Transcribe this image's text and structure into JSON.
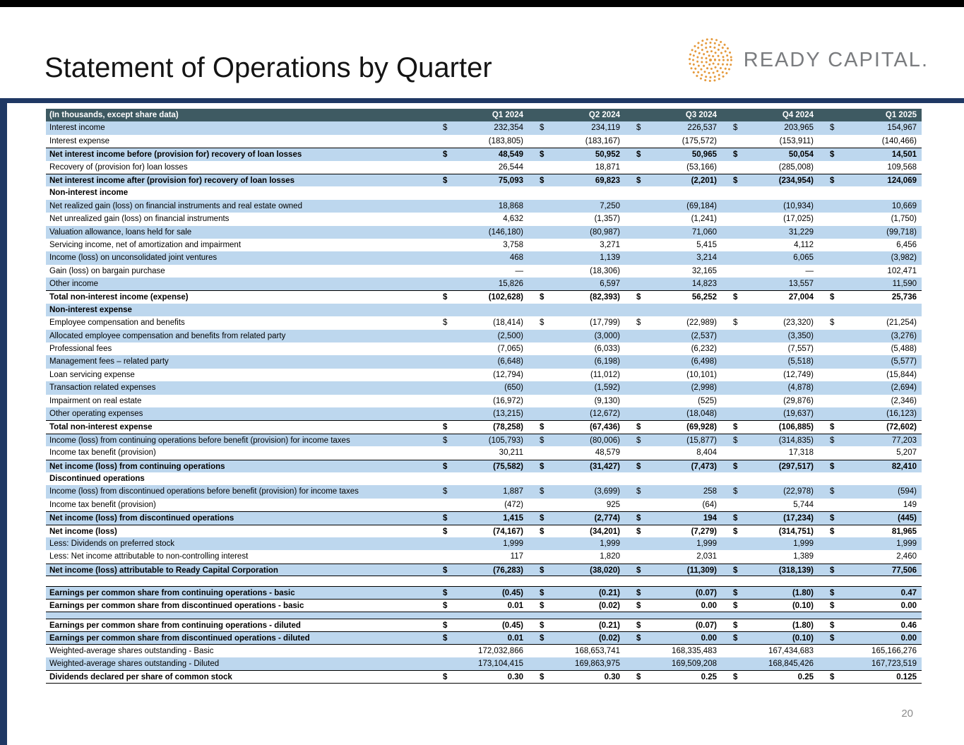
{
  "slide": {
    "title": "Statement of Operations by Quarter",
    "page_number": "20",
    "logo": {
      "text": "READY CAPITAL",
      "mark": ".",
      "icon": "dot-globe-icon"
    }
  },
  "colors": {
    "header_bg": "#3E5A62",
    "row_alt": "#BDD7EE",
    "accent_navy": "#1F3864",
    "logo_orange": "#E59B3F",
    "logo_gray": "#7A7C7F"
  },
  "table": {
    "header": {
      "label": "(In thousands, except share data)",
      "columns": [
        "Q1 2024",
        "Q2 2024",
        "Q3 2024",
        "Q4 2024",
        "Q1 2025"
      ]
    },
    "rows": [
      {
        "label": "Interest income",
        "shade": "blue",
        "dollar": true,
        "values": [
          "232,354",
          "234,119",
          "226,537",
          "203,965",
          "154,967"
        ]
      },
      {
        "label": "Interest expense",
        "shade": "white",
        "values": [
          "(183,805)",
          "(183,167)",
          "(175,572)",
          "(153,911)",
          "(140,466)"
        ]
      },
      {
        "label": "Net interest income before (provision for) recovery of loan losses",
        "shade": "blue",
        "bold": true,
        "dollar": true,
        "bt": true,
        "values": [
          "48,549",
          "50,952",
          "50,965",
          "50,054",
          "14,501"
        ]
      },
      {
        "label": "Recovery of (provision for) loan losses",
        "shade": "white",
        "values": [
          "26,544",
          "18,871",
          "(53,166)",
          "(285,008)",
          "109,568"
        ]
      },
      {
        "label": "Net interest income after (provision for) recovery of loan losses",
        "shade": "blue",
        "bold": true,
        "dollar": true,
        "bt": true,
        "values": [
          "75,093",
          "69,823",
          "(2,201)",
          "(234,954)",
          "124,069"
        ]
      },
      {
        "label": "Non-interest income",
        "shade": "white",
        "bold": true,
        "section": true
      },
      {
        "label": "Net realized gain (loss) on financial instruments and real estate owned",
        "shade": "blue",
        "values": [
          "18,868",
          "7,250",
          "(69,184)",
          "(10,934)",
          "10,669"
        ]
      },
      {
        "label": "Net unrealized gain (loss) on financial instruments",
        "shade": "white",
        "values": [
          "4,632",
          "(1,357)",
          "(1,241)",
          "(17,025)",
          "(1,750)"
        ]
      },
      {
        "label": "Valuation allowance, loans held for sale",
        "shade": "blue",
        "values": [
          "(146,180)",
          "(80,987)",
          "71,060",
          "31,229",
          "(99,718)"
        ]
      },
      {
        "label": "Servicing income, net of amortization and impairment",
        "shade": "white",
        "values": [
          "3,758",
          "3,271",
          "5,415",
          "4,112",
          "6,456"
        ]
      },
      {
        "label": "Income (loss) on unconsolidated joint ventures",
        "shade": "blue",
        "values": [
          "468",
          "1,139",
          "3,214",
          "6,065",
          "(3,982)"
        ]
      },
      {
        "label": "Gain (loss) on bargain purchase",
        "shade": "white",
        "values": [
          "—",
          "(18,306)",
          "32,165",
          "—",
          "102,471"
        ]
      },
      {
        "label": "Other income",
        "shade": "blue",
        "values": [
          "15,826",
          "6,597",
          "14,823",
          "13,557",
          "11,590"
        ]
      },
      {
        "label": "Total non-interest income (expense)",
        "shade": "white",
        "bold": true,
        "dollar": true,
        "bt": true,
        "values": [
          "(102,628)",
          "(82,393)",
          "56,252",
          "27,004",
          "25,736"
        ]
      },
      {
        "label": "Non-interest expense",
        "shade": "blue",
        "bold": true,
        "section": true
      },
      {
        "label": "Employee compensation and benefits",
        "shade": "white",
        "dollar": true,
        "values": [
          "(18,414)",
          "(17,799)",
          "(22,989)",
          "(23,320)",
          "(21,254)"
        ]
      },
      {
        "label": "Allocated employee compensation and benefits from related party",
        "shade": "blue",
        "values": [
          "(2,500)",
          "(3,000)",
          "(2,537)",
          "(3,350)",
          "(3,276)"
        ]
      },
      {
        "label": "Professional fees",
        "shade": "white",
        "values": [
          "(7,065)",
          "(6,033)",
          "(6,232)",
          "(7,557)",
          "(5,488)"
        ]
      },
      {
        "label": "Management fees – related party",
        "shade": "blue",
        "values": [
          "(6,648)",
          "(6,198)",
          "(6,498)",
          "(5,518)",
          "(5,577)"
        ]
      },
      {
        "label": "Loan servicing expense",
        "shade": "white",
        "values": [
          "(12,794)",
          "(11,012)",
          "(10,101)",
          "(12,749)",
          "(15,844)"
        ]
      },
      {
        "label": "Transaction related expenses",
        "shade": "blue",
        "values": [
          "(650)",
          "(1,592)",
          "(2,998)",
          "(4,878)",
          "(2,694)"
        ]
      },
      {
        "label": "Impairment on real estate",
        "shade": "white",
        "values": [
          "(16,972)",
          "(9,130)",
          "(525)",
          "(29,876)",
          "(2,346)"
        ]
      },
      {
        "label": "Other operating expenses",
        "shade": "blue",
        "values": [
          "(13,215)",
          "(12,672)",
          "(18,048)",
          "(19,637)",
          "(16,123)"
        ]
      },
      {
        "label": "Total non-interest expense",
        "shade": "white",
        "bold": true,
        "dollar": true,
        "bt": true,
        "values": [
          "(78,258)",
          "(67,436)",
          "(69,928)",
          "(106,885)",
          "(72,602)"
        ]
      },
      {
        "label": "Income (loss) from continuing operations before benefit (provision) for income taxes",
        "shade": "blue",
        "dollar": true,
        "bt": true,
        "values": [
          "(105,793)",
          "(80,006)",
          "(15,877)",
          "(314,835)",
          "77,203"
        ]
      },
      {
        "label": "Income tax benefit (provision)",
        "shade": "white",
        "values": [
          "30,211",
          "48,579",
          "8,404",
          "17,318",
          "5,207"
        ]
      },
      {
        "label": "Net income (loss) from continuing operations",
        "shade": "blue",
        "bold": true,
        "dollar": true,
        "bt": true,
        "values": [
          "(75,582)",
          "(31,427)",
          "(7,473)",
          "(297,517)",
          "82,410"
        ]
      },
      {
        "label": "Discontinued operations",
        "shade": "white",
        "bold": true,
        "section": true
      },
      {
        "label": "Income (loss) from discontinued operations before benefit (provision) for income taxes",
        "shade": "blue",
        "dollar": true,
        "values": [
          "1,887",
          "(3,699)",
          "258",
          "(22,978)",
          "(594)"
        ]
      },
      {
        "label": "Income tax benefit (provision)",
        "shade": "white",
        "values": [
          "(472)",
          "925",
          "(64)",
          "5,744",
          "149"
        ]
      },
      {
        "label": "Net income (loss) from discontinued operations",
        "shade": "blue",
        "bold": true,
        "dollar": true,
        "bt": true,
        "values": [
          "1,415",
          "(2,774)",
          "194",
          "(17,234)",
          "(445)"
        ]
      },
      {
        "label": "Net income (loss)",
        "shade": "white",
        "bold": true,
        "dollar": true,
        "bt": true,
        "values": [
          "(74,167)",
          "(34,201)",
          "(7,279)",
          "(314,751)",
          "81,965"
        ]
      },
      {
        "label": "Less: Dividends on preferred stock",
        "shade": "blue",
        "values": [
          "1,999",
          "1,999",
          "1,999",
          "1,999",
          "1,999"
        ]
      },
      {
        "label": "Less: Net income attributable to non-controlling interest",
        "shade": "white",
        "values": [
          "117",
          "1,820",
          "2,031",
          "1,389",
          "2,460"
        ]
      },
      {
        "label": "Net income (loss) attributable to Ready Capital Corporation",
        "shade": "blue",
        "bold": true,
        "dollar": true,
        "bt": true,
        "bb": true,
        "values": [
          "(76,283)",
          "(38,020)",
          "(11,309)",
          "(318,139)",
          "77,506"
        ]
      },
      {
        "spacer": true,
        "shade": "white",
        "h": 14
      },
      {
        "label": "Earnings per common share from continuing operations - basic",
        "shade": "blue",
        "bold": true,
        "dollar": true,
        "bt": true,
        "values": [
          "(0.45)",
          "(0.21)",
          "(0.07)",
          "(1.80)",
          "0.47"
        ]
      },
      {
        "label": "Earnings per common share from discontinued operations - basic",
        "shade": "white",
        "bold": true,
        "dollar": true,
        "bt": true,
        "bb": true,
        "values": [
          "0.01",
          "(0.02)",
          "0.00",
          "(0.10)",
          "0.00"
        ]
      },
      {
        "spacer": true,
        "shade": "blue",
        "h": 9
      },
      {
        "label": "Earnings per common share from continuing operations - diluted",
        "shade": "white",
        "bold": true,
        "dollar": true,
        "bt": true,
        "values": [
          "(0.45)",
          "(0.21)",
          "(0.07)",
          "(1.80)",
          "0.46"
        ]
      },
      {
        "label": "Earnings per common share from discontinued operations - diluted",
        "shade": "blue",
        "bold": true,
        "dollar": true,
        "bt": true,
        "bb": true,
        "values": [
          "0.01",
          "(0.02)",
          "0.00",
          "(0.10)",
          "0.00"
        ]
      },
      {
        "label": "Weighted-average shares outstanding - Basic",
        "shade": "white",
        "values": [
          "172,032,866",
          "168,653,741",
          "168,335,483",
          "167,434,683",
          "165,166,276"
        ]
      },
      {
        "label": "Weighted-average shares outstanding - Diluted",
        "shade": "blue",
        "values": [
          "173,104,415",
          "169,863,975",
          "169,509,208",
          "168,845,426",
          "167,723,519"
        ]
      },
      {
        "label": "Dividends declared per share of common stock",
        "shade": "white",
        "bold": true,
        "dollar": true,
        "bt": true,
        "bb": true,
        "values": [
          "0.30",
          "0.30",
          "0.25",
          "0.25",
          "0.125"
        ]
      }
    ]
  }
}
